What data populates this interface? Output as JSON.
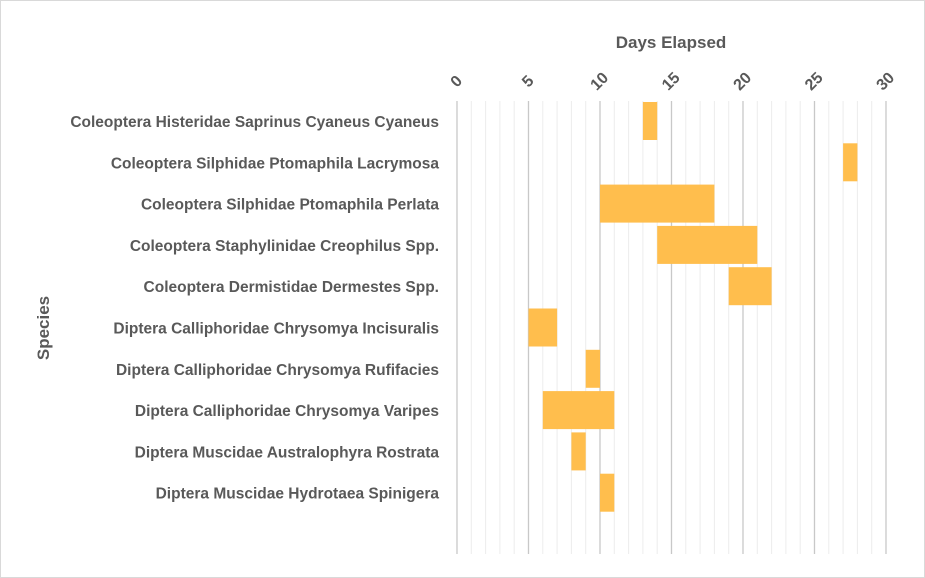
{
  "chart_data": {
    "type": "bar",
    "orientation": "horizontal-floating",
    "title": "",
    "xlabel": "Days Elapsed",
    "ylabel": "Species",
    "xlim": [
      0,
      30
    ],
    "x_ticks": [
      0,
      5,
      10,
      15,
      20,
      25,
      30
    ],
    "x_axis_position": "top",
    "grid": true,
    "bar_color": "#FFBE4D",
    "categories": [
      "Coleoptera Histeridae Saprinus Cyaneus Cyaneus",
      "Coleoptera Silphidae Ptomaphila Lacrymosa",
      "Coleoptera Silphidae Ptomaphila Perlata",
      "Coleoptera Staphylinidae Creophilus Spp.",
      "Coleoptera Dermistidae Dermestes Spp.",
      "Diptera Calliphoridae Chrysomya Incisuralis",
      "Diptera Calliphoridae Chrysomya Rufifacies",
      "Diptera Calliphoridae Chrysomya Varipes",
      "Diptera Muscidae Australophyra Rostrata",
      "Diptera Muscidae Hydrotaea Spinigera"
    ],
    "ranges": [
      [
        13,
        14
      ],
      [
        27,
        28
      ],
      [
        10,
        18
      ],
      [
        14,
        21
      ],
      [
        19,
        22
      ],
      [
        5,
        7
      ],
      [
        9,
        10
      ],
      [
        6,
        11
      ],
      [
        8,
        9
      ],
      [
        10,
        11
      ]
    ]
  }
}
